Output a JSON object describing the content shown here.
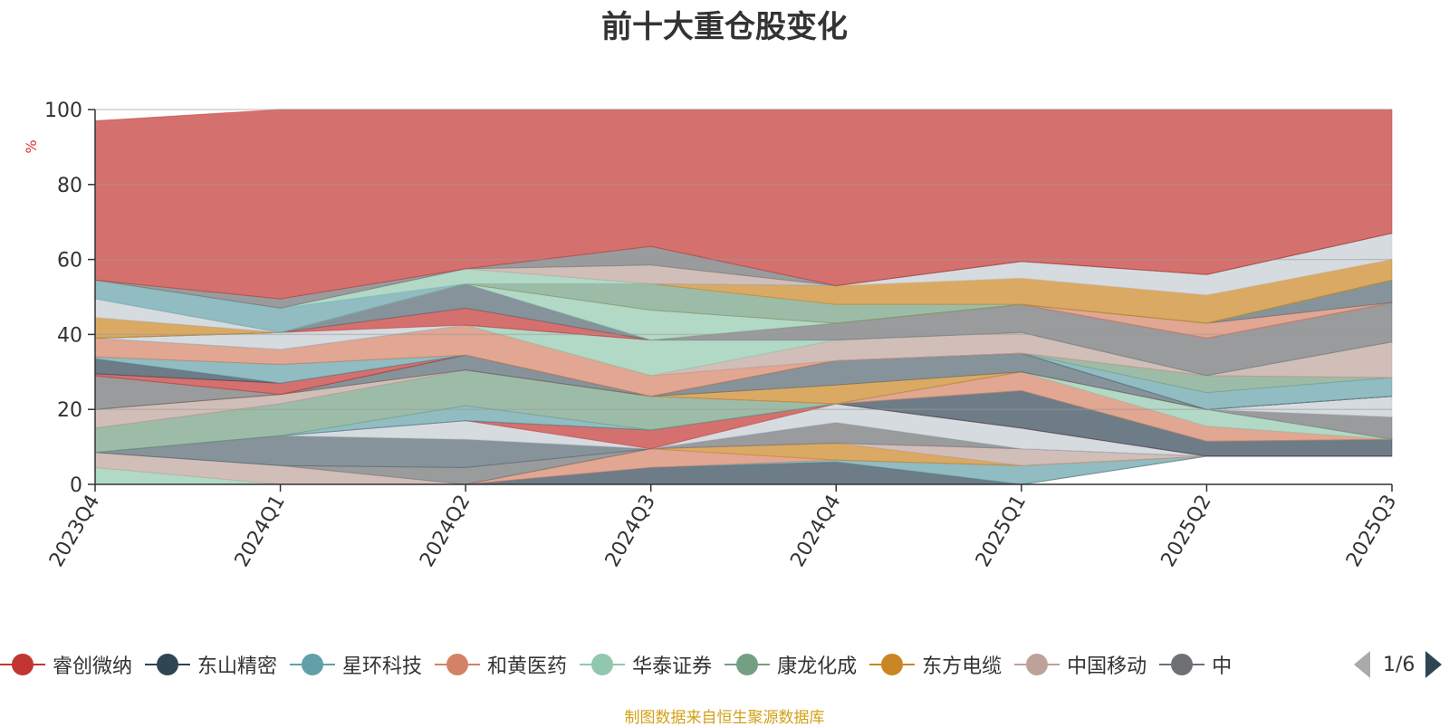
{
  "title": "前十大重仓股变化",
  "unit_label": "%",
  "source_text": "制图数据来自恒生聚源数据库",
  "legend_page": "1/6",
  "legend": [
    {
      "name": "睿创微纳",
      "color": "#c23531"
    },
    {
      "name": "东山精密",
      "color": "#2f4554"
    },
    {
      "name": "星环科技",
      "color": "#61a0a8"
    },
    {
      "name": "和黄医药",
      "color": "#d48265"
    },
    {
      "name": "华泰证券",
      "color": "#91c7ae"
    },
    {
      "name": "康龙化成",
      "color": "#749f83"
    },
    {
      "name": "东方电缆",
      "color": "#ca8622"
    },
    {
      "name": "中国移动",
      "color": "#bda29a"
    },
    {
      "name": "中",
      "color": "#6e7074"
    }
  ],
  "chart_data": {
    "type": "area",
    "title": "前十大重仓股变化",
    "ylabel": "%",
    "ylim": [
      0,
      100
    ],
    "yticks": [
      0,
      20,
      40,
      60,
      80,
      100
    ],
    "categories": [
      "2023Q4",
      "2024Q1",
      "2024Q2",
      "2024Q3",
      "2024Q4",
      "2025Q1",
      "2025Q2",
      "2025Q3"
    ],
    "layers": [
      {
        "color": "#91c7ae",
        "bottom": [
          0,
          0,
          0,
          0,
          0,
          0,
          0,
          0
        ],
        "top": [
          4.5,
          0,
          0,
          0,
          0,
          0,
          0,
          0
        ]
      },
      {
        "color": "#c23531",
        "bottom": [
          0,
          0,
          0,
          0,
          0,
          0,
          7.5,
          7.5
        ],
        "top": [
          0,
          0,
          0,
          0,
          0,
          0,
          7.5,
          7.5
        ]
      },
      {
        "color": "#2f4554",
        "bottom": [
          0,
          0,
          0,
          0,
          0,
          0,
          7.5,
          7.5
        ],
        "top": [
          0,
          0,
          0,
          4.5,
          6,
          0,
          7.5,
          7.5
        ]
      },
      {
        "color": "#61a0a8",
        "bottom": [
          0,
          0,
          0,
          4.5,
          6,
          0,
          7.5,
          7.5
        ],
        "top": [
          0,
          0,
          0,
          4.5,
          6.5,
          5,
          7.5,
          7.5
        ]
      },
      {
        "color": "#d48265",
        "bottom": [
          0,
          0,
          0,
          4.5,
          6.5,
          5,
          7.5,
          7.5
        ],
        "top": [
          0,
          0,
          0,
          9.5,
          6.5,
          5,
          7.5,
          7.5
        ]
      },
      {
        "color": "#ca8622",
        "bottom": [
          0,
          0,
          0,
          9.5,
          6.5,
          5,
          7.5,
          7.5
        ],
        "top": [
          0,
          0,
          0,
          9.5,
          11,
          5,
          7.5,
          7.5
        ]
      },
      {
        "color": "#bda29a",
        "bottom": [
          4.5,
          0,
          0,
          9.5,
          11,
          5,
          7.5,
          7.5
        ],
        "top": [
          8.5,
          5,
          0,
          9.5,
          11,
          9.5,
          7.5,
          7.5
        ]
      },
      {
        "color": "#6e7074",
        "bottom": [
          8.5,
          5,
          0,
          9.5,
          11,
          9.5,
          7.5,
          7.5
        ],
        "top": [
          8.5,
          5,
          4.5,
          9.5,
          16.5,
          9.5,
          7.5,
          7.5
        ]
      },
      {
        "color": "#546570",
        "bottom": [
          8.5,
          5,
          4.5,
          9.5,
          16.5,
          9.5,
          7.5,
          7.5
        ],
        "top": [
          8.5,
          13,
          12,
          9.5,
          16.5,
          9.5,
          7.5,
          7.5
        ]
      },
      {
        "color": "#c4ccd3",
        "bottom": [
          8.5,
          13,
          12,
          9.5,
          16.5,
          9.5,
          7.5,
          7.5
        ],
        "top": [
          8.5,
          13,
          17,
          9.5,
          21.5,
          15,
          7.5,
          7.5
        ]
      },
      {
        "color": "#c23531",
        "bottom": [
          8.5,
          13,
          17,
          9.5,
          21.5,
          15,
          7.5,
          7.5
        ],
        "top": [
          8.5,
          13,
          17,
          14.5,
          21.5,
          15,
          7.5,
          7.5
        ]
      },
      {
        "color": "#2f4554",
        "bottom": [
          8.5,
          13,
          17,
          14.5,
          21.5,
          15,
          7.5,
          7.5
        ],
        "top": [
          8.5,
          13,
          17,
          14.5,
          21.5,
          25,
          11.5,
          12
        ]
      },
      {
        "color": "#61a0a8",
        "bottom": [
          8.5,
          13,
          17,
          14.5,
          21.5,
          25,
          11.5,
          12
        ],
        "top": [
          8.5,
          13,
          21,
          14.5,
          21.5,
          25,
          11.5,
          12
        ]
      },
      {
        "color": "#749f83",
        "bottom": [
          8.5,
          13,
          21,
          14.5,
          21.5,
          25,
          11.5,
          12
        ],
        "top": [
          15,
          21.5,
          30.5,
          23.5,
          21.5,
          25,
          11.5,
          12
        ]
      },
      {
        "color": "#d48265",
        "bottom": [
          15,
          21.5,
          30.5,
          23.5,
          21.5,
          25,
          11.5,
          12
        ],
        "top": [
          15,
          21.5,
          30.5,
          23.5,
          21.5,
          30,
          15.5,
          12
        ]
      },
      {
        "color": "#91c7ae",
        "bottom": [
          15,
          21.5,
          30.5,
          23.5,
          21.5,
          30,
          15.5,
          12
        ],
        "top": [
          15,
          21.5,
          30.5,
          23.5,
          21.5,
          30,
          20,
          12
        ]
      },
      {
        "color": "#6e7074",
        "bottom": [
          15,
          21.5,
          30.5,
          23.5,
          21.5,
          30,
          20,
          12
        ],
        "top": [
          15,
          21.5,
          30.5,
          23.5,
          21.5,
          30,
          20,
          18
        ]
      },
      {
        "color": "#c4ccd3",
        "bottom": [
          15,
          21.5,
          30.5,
          23.5,
          21.5,
          30,
          20,
          18
        ],
        "top": [
          15,
          21.5,
          30.5,
          23.5,
          21.5,
          30,
          20,
          23.5
        ]
      },
      {
        "color": "#bda29a",
        "bottom": [
          15,
          21.5,
          30.5,
          23.5,
          21.5,
          30,
          20,
          23.5
        ],
        "top": [
          20,
          24,
          30.5,
          23.5,
          21.5,
          30,
          20,
          23.5
        ]
      },
      {
        "color": "#ca8622",
        "bottom": [
          20,
          24,
          30.5,
          23.5,
          21.5,
          30,
          20,
          23.5
        ],
        "top": [
          20,
          24,
          30.5,
          23.5,
          26.5,
          30,
          20,
          23.5
        ]
      },
      {
        "color": "#546570",
        "bottom": [
          20,
          24,
          30.5,
          23.5,
          26.5,
          30,
          20,
          23.5
        ],
        "top": [
          20,
          24,
          34.5,
          23.5,
          33,
          35,
          20,
          23.5
        ]
      },
      {
        "color": "#6e7074",
        "bottom": [
          20,
          24,
          34.5,
          23.5,
          33,
          35,
          20,
          23.5
        ],
        "top": [
          29,
          24,
          34.5,
          23.5,
          33,
          35,
          20,
          23.5
        ]
      },
      {
        "color": "#c23531",
        "bottom": [
          29,
          24,
          34.5,
          23.5,
          33,
          35,
          20,
          23.5
        ],
        "top": [
          29.5,
          27,
          34.5,
          23.5,
          33,
          35,
          20,
          23.5
        ]
      },
      {
        "color": "#2f4554",
        "bottom": [
          29.5,
          27,
          34.5,
          23.5,
          33,
          35,
          20,
          23.5
        ],
        "top": [
          33.5,
          27,
          34.5,
          23.5,
          33,
          35,
          20,
          23.5
        ]
      },
      {
        "color": "#61a0a8",
        "bottom": [
          33.5,
          27,
          34.5,
          23.5,
          33,
          35,
          20,
          23.5
        ],
        "top": [
          34,
          32,
          34.5,
          23.5,
          33,
          35,
          24.5,
          28.5
        ]
      },
      {
        "color": "#749f83",
        "bottom": [
          34,
          32,
          34.5,
          23.5,
          33,
          35,
          24.5,
          28.5
        ],
        "top": [
          34,
          32,
          34.5,
          23.5,
          33,
          35,
          29,
          28.5
        ]
      },
      {
        "color": "#d48265",
        "bottom": [
          34,
          32,
          34.5,
          23.5,
          33,
          35,
          29,
          28.5
        ],
        "top": [
          39,
          36,
          42.5,
          29,
          33,
          35,
          29,
          28.5
        ]
      },
      {
        "color": "#bda29a",
        "bottom": [
          39,
          36,
          42.5,
          29,
          33,
          35,
          29,
          28.5
        ],
        "top": [
          39,
          36,
          42.5,
          29,
          38.5,
          40.5,
          29,
          38
        ]
      },
      {
        "color": "#91c7ae",
        "bottom": [
          39,
          36,
          42.5,
          29,
          38.5,
          40.5,
          29,
          38
        ],
        "top": [
          39,
          36,
          42.5,
          38.5,
          38.5,
          40.5,
          29,
          38
        ]
      },
      {
        "color": "#6e7074",
        "bottom": [
          39,
          36,
          42.5,
          38.5,
          38.5,
          40.5,
          29,
          38
        ],
        "top": [
          39,
          36,
          42.5,
          38.5,
          43,
          48,
          39,
          48.5
        ]
      },
      {
        "color": "#c4ccd3",
        "bottom": [
          39,
          36,
          42.5,
          38.5,
          43,
          48,
          39,
          48.5
        ],
        "top": [
          39,
          40.5,
          42.5,
          38.5,
          43,
          48,
          39,
          48.5
        ]
      },
      {
        "color": "#c23531",
        "bottom": [
          39,
          40.5,
          42.5,
          38.5,
          43,
          48,
          39,
          48.5
        ],
        "top": [
          39,
          40.5,
          47,
          38.5,
          43,
          48,
          39,
          48.5
        ]
      },
      {
        "color": "#d48265",
        "bottom": [
          39,
          40.5,
          47,
          38.5,
          43,
          48,
          39,
          48.5
        ],
        "top": [
          39,
          40.5,
          47,
          38.5,
          43,
          48,
          43,
          48.5
        ]
      },
      {
        "color": "#546570",
        "bottom": [
          39,
          40.5,
          47,
          38.5,
          43,
          48,
          43,
          48.5
        ],
        "top": [
          39,
          40.5,
          53.5,
          38.5,
          43,
          48,
          43,
          54.5
        ]
      },
      {
        "color": "#91c7ae",
        "bottom": [
          39,
          40.5,
          53.5,
          38.5,
          43,
          48,
          43,
          54.5
        ],
        "top": [
          39,
          40.5,
          53.5,
          46.5,
          43,
          48,
          43,
          54.5
        ]
      },
      {
        "color": "#ca8622",
        "bottom": [
          39,
          40.5,
          53.5,
          46.5,
          43,
          48,
          43,
          54.5
        ],
        "top": [
          44.5,
          40.5,
          53.5,
          46.5,
          43,
          48,
          43,
          54.5
        ]
      },
      {
        "color": "#749f83",
        "bottom": [
          44.5,
          40.5,
          53.5,
          46.5,
          43,
          48,
          43,
          54.5
        ],
        "top": [
          44.5,
          40.5,
          53.5,
          53.5,
          48,
          48,
          43,
          54.5
        ]
      },
      {
        "color": "#ca8622",
        "bottom": [
          44.5,
          40.5,
          53.5,
          53.5,
          48,
          48,
          43,
          54.5
        ],
        "top": [
          44.5,
          40.5,
          53.5,
          53.5,
          53,
          55,
          50.5,
          60
        ]
      },
      {
        "color": "#c4ccd3",
        "bottom": [
          44.5,
          40.5,
          53.5,
          53.5,
          53,
          55,
          50.5,
          60
        ],
        "top": [
          49.5,
          40.5,
          53.5,
          53.5,
          53,
          59.5,
          56,
          67
        ]
      },
      {
        "color": "#61a0a8",
        "bottom": [
          49.5,
          40.5,
          53.5,
          53.5,
          53,
          59.5,
          56,
          67
        ],
        "top": [
          54.5,
          47,
          53.5,
          53.5,
          53,
          59.5,
          56,
          67
        ]
      },
      {
        "color": "#91c7ae",
        "bottom": [
          54.5,
          47,
          53.5,
          53.5,
          53,
          59.5,
          56,
          67
        ],
        "top": [
          54.5,
          47,
          57.5,
          53.5,
          53,
          59.5,
          56,
          67
        ]
      },
      {
        "color": "#bda29a",
        "bottom": [
          54.5,
          47,
          57.5,
          53.5,
          53,
          59.5,
          56,
          67
        ],
        "top": [
          54.5,
          47,
          57.5,
          58.5,
          53,
          59.5,
          56,
          67
        ]
      },
      {
        "color": "#6e7074",
        "bottom": [
          54.5,
          47,
          57.5,
          58.5,
          53,
          59.5,
          56,
          67
        ],
        "top": [
          54.5,
          49.5,
          57.5,
          63.5,
          53,
          59.5,
          56,
          67
        ]
      },
      {
        "color": "#c23531",
        "bottom": [
          54.5,
          49.5,
          57.5,
          63.5,
          53,
          59.5,
          56,
          67
        ],
        "top": [
          97,
          100,
          100,
          100,
          100,
          100,
          100,
          100
        ]
      }
    ]
  }
}
